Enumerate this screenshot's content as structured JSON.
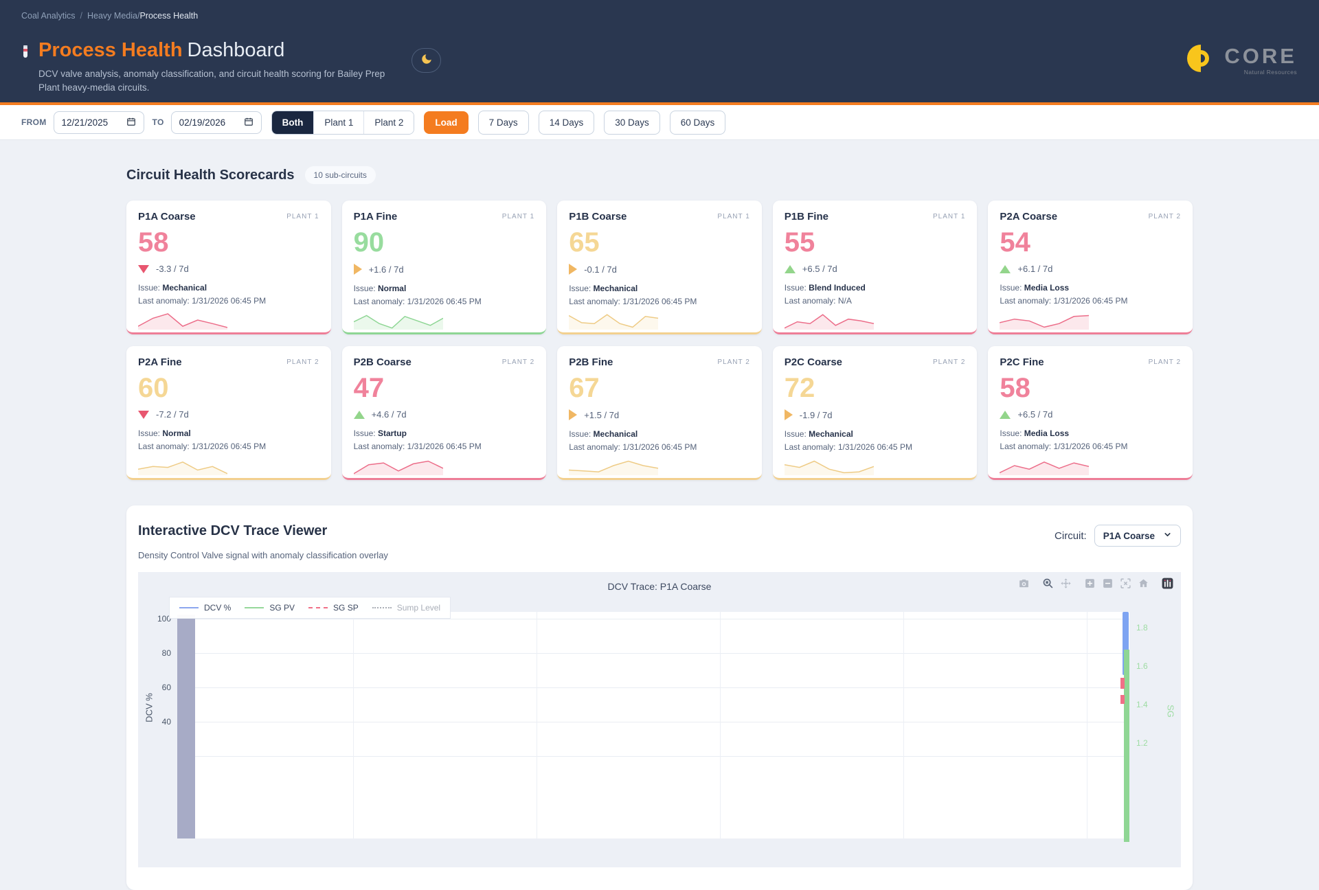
{
  "breadcrumb": {
    "root": "Coal Analytics",
    "separator": "/",
    "section": "Heavy Media/",
    "current": "Process Health"
  },
  "header": {
    "title_accent": "Process Health",
    "title_rest": "Dashboard",
    "subtitle": "DCV valve analysis, anomaly classification, and circuit health scoring for Bailey Prep Plant heavy-media circuits.",
    "logo_text": "CORE",
    "logo_tagline": "Natural Resources"
  },
  "filter_bar": {
    "from_label": "FROM",
    "from_value": "12/21/2025",
    "to_label": "TO",
    "to_value": "02/19/2026",
    "plant_toggle": [
      "Both",
      "Plant 1",
      "Plant 2"
    ],
    "plant_active": "Both",
    "load_label": "Load",
    "quick_ranges": [
      "7 Days",
      "14 Days",
      "30 Days",
      "60 Days"
    ]
  },
  "scorecards": {
    "heading": "Circuit Health Scorecards",
    "count_badge": "10 sub-circuits",
    "issue_label": "Issue:",
    "last_anomaly_label": "Last anomaly:",
    "cards": [
      {
        "name": "P1A Coarse",
        "plant": "PLANT 1",
        "score": 58,
        "color": "pink",
        "trend": "down",
        "trend_text": "-3.3 / 7d",
        "issue": "Mechanical",
        "last_anomaly": "1/31/2026 06:45 PM",
        "spark": [
          0.15,
          0.6,
          0.85,
          0.15,
          0.5,
          0.3,
          0.08
        ]
      },
      {
        "name": "P1A Fine",
        "plant": "PLANT 1",
        "score": 90,
        "color": "green",
        "trend": "flat",
        "trend_text": "+1.6 / 7d",
        "issue": "Normal",
        "last_anomaly": "1/31/2026 06:45 PM",
        "spark": [
          0.4,
          0.75,
          0.3,
          0.05,
          0.7,
          0.45,
          0.2,
          0.6
        ]
      },
      {
        "name": "P1B Coarse",
        "plant": "PLANT 1",
        "score": 65,
        "color": "yellow",
        "trend": "flat",
        "trend_text": "-0.1 / 7d",
        "issue": "Mechanical",
        "last_anomaly": "1/31/2026 06:45 PM",
        "spark": [
          0.75,
          0.35,
          0.3,
          0.8,
          0.3,
          0.1,
          0.7,
          0.6
        ]
      },
      {
        "name": "P1B Fine",
        "plant": "PLANT 1",
        "score": 55,
        "color": "pink",
        "trend": "up",
        "trend_text": "+6.5 / 7d",
        "issue": "Blend Induced",
        "last_anomaly": "N/A",
        "spark": [
          0.05,
          0.4,
          0.3,
          0.8,
          0.2,
          0.55,
          0.45,
          0.3
        ]
      },
      {
        "name": "P2A Coarse",
        "plant": "PLANT 2",
        "score": 54,
        "color": "pink",
        "trend": "up",
        "trend_text": "+6.1 / 7d",
        "issue": "Media Loss",
        "last_anomaly": "1/31/2026 06:45 PM",
        "spark": [
          0.35,
          0.55,
          0.45,
          0.1,
          0.3,
          0.7,
          0.75
        ]
      },
      {
        "name": "P2A Fine",
        "plant": "PLANT 2",
        "score": 60,
        "color": "yellow",
        "trend": "down",
        "trend_text": "-7.2 / 7d",
        "issue": "Normal",
        "last_anomaly": "1/31/2026 06:45 PM",
        "spark": [
          0.3,
          0.45,
          0.4,
          0.7,
          0.25,
          0.45,
          0.05
        ]
      },
      {
        "name": "P2B Coarse",
        "plant": "PLANT 2",
        "score": 47,
        "color": "pink",
        "trend": "up",
        "trend_text": "+4.6 / 7d",
        "issue": "Startup",
        "last_anomaly": "1/31/2026 06:45 PM",
        "spark": [
          0.05,
          0.55,
          0.65,
          0.2,
          0.6,
          0.75,
          0.35
        ]
      },
      {
        "name": "P2B Fine",
        "plant": "PLANT 2",
        "score": 67,
        "color": "yellow",
        "trend": "flat",
        "trend_text": "+1.5 / 7d",
        "issue": "Mechanical",
        "last_anomaly": "1/31/2026 06:45 PM",
        "spark": [
          0.25,
          0.2,
          0.15,
          0.5,
          0.75,
          0.5,
          0.35
        ]
      },
      {
        "name": "P2C Coarse",
        "plant": "PLANT 2",
        "score": 72,
        "color": "yellow",
        "trend": "flat",
        "trend_text": "-1.9 / 7d",
        "issue": "Mechanical",
        "last_anomaly": "1/31/2026 06:45 PM",
        "spark": [
          0.55,
          0.4,
          0.75,
          0.3,
          0.1,
          0.15,
          0.45
        ]
      },
      {
        "name": "P2C Fine",
        "plant": "PLANT 2",
        "score": 58,
        "color": "pink",
        "trend": "up",
        "trend_text": "+6.5 / 7d",
        "issue": "Media Loss",
        "last_anomaly": "1/31/2026 06:45 PM",
        "spark": [
          0.1,
          0.5,
          0.3,
          0.7,
          0.35,
          0.65,
          0.45
        ]
      }
    ]
  },
  "trace_viewer": {
    "heading": "Interactive DCV Trace Viewer",
    "subtitle": "Density Control Valve signal with anomaly classification overlay",
    "circuit_label": "Circuit:",
    "circuit_selected": "P1A Coarse",
    "modebar_icons": [
      "camera-icon",
      "zoom-icon",
      "pan-icon",
      "zoom-in-icon",
      "zoom-out-icon",
      "autoscale-icon",
      "reset-axes-icon",
      "plotly-logo-icon"
    ]
  },
  "chart_data": {
    "type": "line",
    "title": "DCV Trace: P1A Coarse",
    "ylabel": "DCV %",
    "y2label": "SG",
    "yticks": [
      "100",
      "80",
      "60",
      "40"
    ],
    "y2ticks": [
      "1.8",
      "1.6",
      "1.4",
      "1.2"
    ],
    "ylim_visible": [
      40,
      100
    ],
    "y2lim_visible": [
      1.2,
      1.8
    ],
    "grid": true,
    "legend_position": "top-left",
    "series": [
      {
        "name": "DCV %",
        "color": "#8ba6ee",
        "style": "solid",
        "axis": "left"
      },
      {
        "name": "SG PV",
        "color": "#95d89a",
        "style": "solid",
        "axis": "right"
      },
      {
        "name": "SG SP",
        "color": "#f07087",
        "style": "dashed",
        "axis": "right"
      },
      {
        "name": "Sump Level",
        "color": "#a9adb5",
        "style": "dotted",
        "hidden": true
      }
    ],
    "anomaly_band": {
      "color": "#a7abc6",
      "position": "left-edge"
    }
  },
  "colors": {
    "accent_orange": "#f47c20",
    "header_navy": "#2a3750",
    "trend_up": "#93d58b",
    "trend_down": "#e8566f",
    "trend_flat": "#f0b763",
    "pink": {
      "line": "#ec6d89",
      "fill": "rgba(236,109,137,0.16)",
      "score": "#f0829b",
      "border": "#ee7e97"
    },
    "green": {
      "line": "#8ed694",
      "fill": "rgba(142,214,148,0.18)",
      "score": "#98dc9e",
      "border": "#8ed694"
    },
    "yellow": {
      "line": "#eecb85",
      "fill": "rgba(240,209,142,0.16)",
      "score": "#f5d795",
      "border": "#f3d08f"
    }
  }
}
